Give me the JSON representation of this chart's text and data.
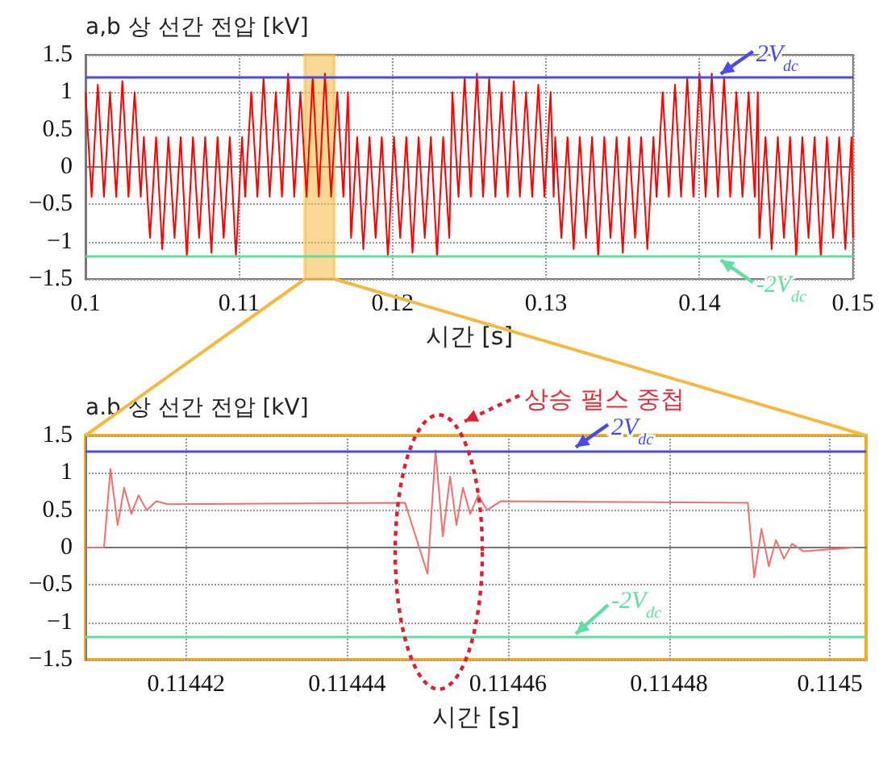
{
  "chart_data": [
    {
      "type": "line",
      "ylabel": "a,b 상 선간 전압 [kV]",
      "xlabel": "시간 [s]",
      "color": "#ff0000",
      "marker": "none",
      "grid": true,
      "xlim": [
        0.1,
        0.15
      ],
      "xticks": [
        0.1,
        0.11,
        0.12,
        0.13,
        0.14,
        0.15
      ],
      "ylim": [
        -1.5,
        1.5
      ],
      "yticks": [
        {
          "value": -1.5,
          "label": "−1.5"
        },
        {
          "value": -1,
          "label": "−1"
        },
        {
          "value": -0.5,
          "label": "−0.5"
        },
        0,
        0.5,
        1,
        1.5
      ],
      "x": [
        0.1,
        0.1004,
        0.1008,
        0.1012,
        0.1016,
        0.102,
        0.1024,
        0.1028,
        0.1032,
        0.1036,
        0.1038,
        0.1042,
        0.1046,
        0.105,
        0.1054,
        0.1058,
        0.1062,
        0.1066,
        0.107,
        0.1074,
        0.1078,
        0.1082,
        0.1086,
        0.109,
        0.1094,
        0.1098,
        0.1102,
        0.1104,
        0.1108,
        0.1112,
        0.1116,
        0.112,
        0.1124,
        0.1128,
        0.1132,
        0.1136,
        0.114,
        0.1144,
        0.1148,
        0.1152,
        0.1156,
        0.116,
        0.1164,
        0.1168,
        0.1171,
        0.1173,
        0.1177,
        0.1181,
        0.1185,
        0.1189,
        0.1193,
        0.1197,
        0.1201,
        0.1205,
        0.1209,
        0.1213,
        0.1217,
        0.1221,
        0.1225,
        0.1229,
        0.1233,
        0.1237,
        0.1239,
        0.1243,
        0.1247,
        0.1251,
        0.1255,
        0.1259,
        0.1263,
        0.1267,
        0.1271,
        0.1275,
        0.1279,
        0.1283,
        0.1287,
        0.1291,
        0.1295,
        0.1299,
        0.1303,
        0.1305,
        0.1306,
        0.131,
        0.1314,
        0.1318,
        0.1322,
        0.1326,
        0.133,
        0.1334,
        0.1338,
        0.1342,
        0.1346,
        0.135,
        0.1354,
        0.1358,
        0.1362,
        0.1366,
        0.137,
        0.1372,
        0.1376,
        0.138,
        0.1384,
        0.1388,
        0.1392,
        0.1396,
        0.14,
        0.1404,
        0.1408,
        0.1412,
        0.1416,
        0.142,
        0.1424,
        0.1428,
        0.1432,
        0.1436,
        0.1438,
        0.1439,
        0.1443,
        0.1447,
        0.1451,
        0.1455,
        0.1459,
        0.1463,
        0.1467,
        0.1471,
        0.1475,
        0.1479,
        0.1483,
        0.1487,
        0.1491,
        0.1495,
        0.1499,
        0.15
      ],
      "values": [
        1,
        -0.4,
        1.1,
        -0.4,
        1,
        -0.4,
        1.15,
        -0.4,
        1,
        -0.4,
        0.4,
        -0.95,
        0.4,
        -1.1,
        0.4,
        -0.95,
        0.4,
        -1.2,
        0.4,
        -0.95,
        0.4,
        -1.15,
        0.4,
        -0.95,
        0.4,
        -1.2,
        0.4,
        -0.4,
        1,
        -0.4,
        1.2,
        -0.4,
        1,
        -0.4,
        1.25,
        -0.4,
        1,
        -0.4,
        1.2,
        -0.4,
        1.25,
        -0.4,
        1,
        -0.4,
        1,
        -0.95,
        0.4,
        -1.1,
        0.4,
        -0.95,
        0.4,
        -1.2,
        0.4,
        -0.95,
        0.4,
        -1.15,
        0.4,
        -0.95,
        0.4,
        -1.2,
        0.4,
        -0.95,
        1,
        -0.4,
        1.2,
        -0.4,
        1.25,
        -0.4,
        1.2,
        -0.4,
        1,
        -0.4,
        1.15,
        -0.4,
        1,
        -0.4,
        1.1,
        -0.4,
        1,
        -0.4,
        0.4,
        -0.95,
        0.4,
        -1.1,
        0.4,
        -0.95,
        0.4,
        -1.2,
        0.4,
        -0.95,
        0.4,
        -1.15,
        0.4,
        -0.95,
        0.4,
        -1.1,
        0.4,
        -0.4,
        1,
        -0.4,
        1.1,
        -0.4,
        1.2,
        -0.4,
        1.25,
        -0.4,
        1.25,
        -0.4,
        1.2,
        -0.4,
        1,
        -0.4,
        1,
        -0.4,
        1,
        -0.95,
        0.4,
        -1.1,
        0.4,
        -0.95,
        0.4,
        -1.2,
        0.4,
        -0.95,
        0.4,
        -1.2,
        0.4,
        -0.95,
        0.4,
        -1.1,
        0.4,
        -0.95
      ],
      "ref_lines": [
        {
          "axis": "y",
          "value": 1.2,
          "label": "2V$_{dc}$",
          "color": "#4a4ae8"
        },
        {
          "axis": "y",
          "value": -1.2,
          "label": "-2V$_{dc}$",
          "color": "#5fe0a0"
        }
      ],
      "bands": [
        {
          "axis": "x",
          "from": 0.1143,
          "to": 0.1162,
          "color": "#f5b940"
        }
      ]
    },
    {
      "type": "line",
      "ylabel": "a.b 상 선간 전압 [kV]",
      "xlabel": "시간 [s]",
      "color": "#f07070",
      "marker": "none",
      "grid": true,
      "xlim": [
        0.1144075,
        0.1145045
      ],
      "xticks": [
        0.11442,
        0.11444,
        0.11446,
        0.11448,
        0.1145
      ],
      "ylim": [
        -1.5,
        1.5
      ],
      "yticks": [
        {
          "value": -1.5,
          "label": "−1.5"
        },
        {
          "value": -1,
          "label": "−1"
        },
        {
          "value": -0.5,
          "label": "−0.5"
        },
        0,
        0.5,
        1,
        1.5
      ],
      "x": [
        0.1144075,
        0.1144098,
        0.1144106,
        0.1144115,
        0.1144123,
        0.1144132,
        0.1144141,
        0.1144151,
        0.1144163,
        0.1144177,
        0.1144472,
        0.11445,
        0.114451,
        0.1144519,
        0.1144528,
        0.1144536,
        0.1144544,
        0.1144553,
        0.1144563,
        0.1144574,
        0.1144591,
        0.1144898,
        0.1144906,
        0.1144915,
        0.1144924,
        0.1144933,
        0.1144943,
        0.1144953,
        0.1144967,
        0.114503
      ],
      "values": [
        0,
        0,
        1.05,
        0.3,
        0.8,
        0.45,
        0.7,
        0.5,
        0.62,
        0.58,
        0.6,
        -0.35,
        1.3,
        0.15,
        0.95,
        0.3,
        0.8,
        0.45,
        0.7,
        0.5,
        0.62,
        0.6,
        -0.4,
        0.25,
        -0.25,
        0.1,
        -0.15,
        0.05,
        -0.05,
        0
      ],
      "ref_lines": [
        {
          "axis": "y",
          "value": 1.3,
          "label": "2V$_{dc}$",
          "color": "#4a4ae8"
        },
        {
          "axis": "y",
          "value": -1.2,
          "label": "-2V$_{dc}$",
          "color": "#5fe0a0"
        }
      ],
      "annotations": [
        "상승 펄스 중첩"
      ]
    }
  ]
}
